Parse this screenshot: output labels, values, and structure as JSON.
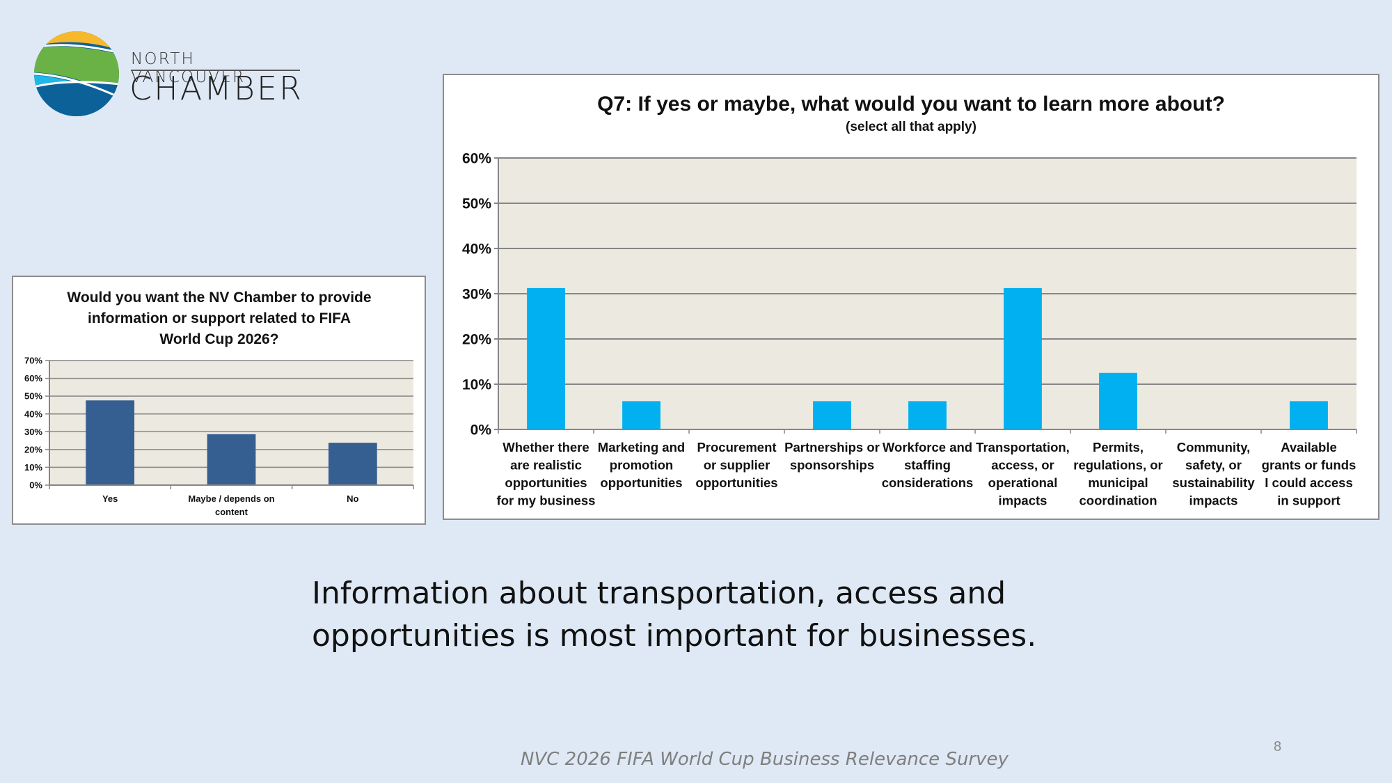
{
  "logo": {
    "line1": "NORTH VANCOUVER",
    "line2": "CHAMBER",
    "colors": {
      "sun": "#f7b92b",
      "green": "#6ab245",
      "light_blue": "#1fb7e8",
      "dark_blue": "#0d6199"
    }
  },
  "chart_data": [
    {
      "id": "small",
      "type": "bar",
      "title_lines": [
        "Would you want the NV Chamber to provide",
        "information or support related to FIFA",
        "World Cup 2026?"
      ],
      "categories": [
        "Yes",
        "Maybe / depends on content",
        "No"
      ],
      "category_lines": [
        [
          "Yes"
        ],
        [
          "Maybe / depends on",
          "content"
        ],
        [
          "No"
        ]
      ],
      "values": [
        47.6,
        28.6,
        23.8
      ],
      "ylim": [
        0,
        70
      ],
      "yticks": [
        0,
        10,
        20,
        30,
        40,
        50,
        60,
        70
      ],
      "ytick_labels": [
        "0%",
        "10%",
        "20%",
        "30%",
        "40%",
        "50%",
        "60%",
        "70%"
      ],
      "xlabel": "",
      "ylabel": "",
      "grid": true,
      "legend": "none",
      "bar_color": "#355f91",
      "plot_bg": "#ece9e0"
    },
    {
      "id": "main",
      "type": "bar",
      "title": "Q7: If yes or maybe, what would you want to learn more about?",
      "subtitle": "(select all that apply)",
      "categories": [
        "Whether there are realistic opportunities for my business",
        "Marketing and promotion opportunities",
        "Procurement or supplier opportunities",
        "Partnerships or sponsorships",
        "Workforce and staffing considerations",
        "Transportation, access, or operational impacts",
        "Permits, regulations, or municipal coordination",
        "Community, safety, or sustainability impacts",
        "Available grants or funds I could access in support"
      ],
      "category_lines": [
        [
          "Whether there",
          "are realistic",
          "opportunities",
          "for my business"
        ],
        [
          "Marketing and",
          "promotion",
          "opportunities"
        ],
        [
          "Procurement",
          "or supplier",
          "opportunities"
        ],
        [
          "Partnerships or",
          "sponsorships"
        ],
        [
          "Workforce and",
          "staffing",
          "considerations"
        ],
        [
          "Transportation,",
          "access, or",
          "operational",
          "impacts"
        ],
        [
          "Permits,",
          "regulations, or",
          "municipal",
          "coordination"
        ],
        [
          "Community,",
          "safety, or",
          "sustainability",
          "impacts"
        ],
        [
          "Available",
          "grants or funds",
          "I could access",
          "in support"
        ]
      ],
      "values": [
        31.25,
        6.25,
        0,
        6.25,
        6.25,
        31.25,
        12.5,
        0,
        6.25
      ],
      "ylim": [
        0,
        60
      ],
      "yticks": [
        0,
        10,
        20,
        30,
        40,
        50,
        60
      ],
      "ytick_labels": [
        "0%",
        "10%",
        "20%",
        "30%",
        "40%",
        "50%",
        "60%"
      ],
      "xlabel": "",
      "ylabel": "",
      "grid": true,
      "legend": "none",
      "bar_color": "#00b0f0",
      "plot_bg": "#ece9e0"
    }
  ],
  "caption": {
    "line1": "Information about transportation, access and",
    "line2": "opportunities is most important for businesses."
  },
  "footer": {
    "survey_title": "NVC 2026 FIFA World Cup Business Relevance Survey",
    "page_number": "8"
  }
}
